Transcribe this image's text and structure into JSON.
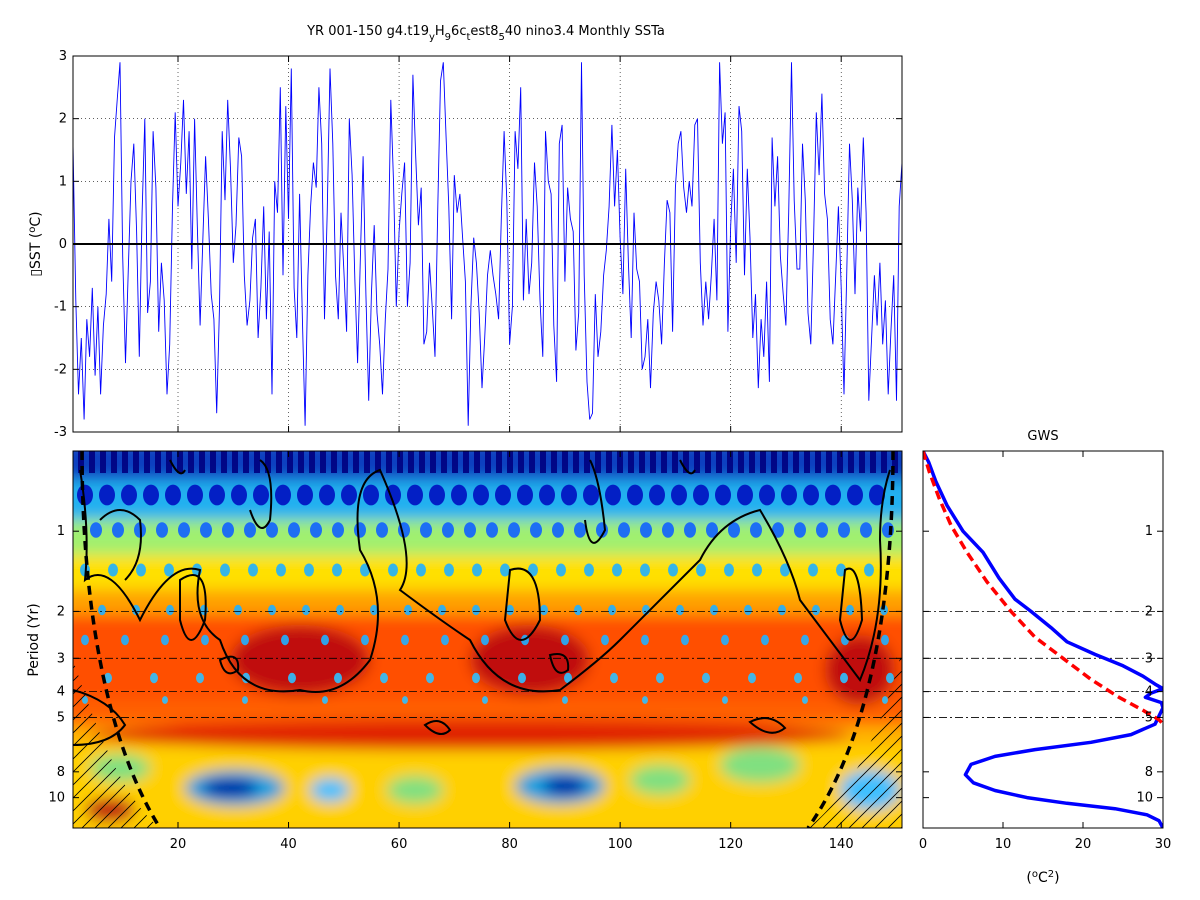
{
  "chart_data": [
    {
      "type": "line",
      "title_parts": [
        "YR 001-150 g4.t19",
        "y",
        "H",
        "9",
        "6c",
        "t",
        "est8",
        "5",
        "40 nino3.4 Monthly SSTa"
      ],
      "ylabel_parts": [
        "▯SST (",
        "o",
        "C)"
      ],
      "xlim": [
        1,
        151
      ],
      "ylim": [
        -3,
        3
      ],
      "x_ticks": [
        20,
        40,
        60,
        80,
        100,
        120,
        140
      ],
      "y_ticks": [
        3,
        2,
        1,
        0,
        -1,
        -2,
        -3
      ],
      "grid": "dotted",
      "zero_line": 0,
      "series": [
        {
          "color": "#0000ff",
          "x_start": 1,
          "x_step": 0.5,
          "values": [
            1.6,
            -0.9,
            -2.4,
            -1.5,
            -2.8,
            -1.2,
            -1.8,
            -0.7,
            -2.1,
            -1.0,
            -2.4,
            -1.3,
            -0.8,
            0.4,
            -0.6,
            1.7,
            2.3,
            2.9,
            -0.2,
            -1.9,
            -0.4,
            1.0,
            1.6,
            0.2,
            -1.8,
            0.5,
            2.0,
            -1.1,
            -0.6,
            1.8,
            0.9,
            -1.4,
            -0.3,
            -0.9,
            -2.4,
            -1.6,
            0.6,
            2.1,
            0.6,
            1.3,
            2.3,
            0.8,
            1.8,
            -0.4,
            2.0,
            0.3,
            -1.3,
            0.1,
            1.4,
            0.4,
            -0.8,
            -1.2,
            -2.7,
            -1.0,
            1.8,
            0.7,
            2.3,
            1.2,
            -0.3,
            0.3,
            1.7,
            1.4,
            -0.5,
            -1.3,
            -0.9,
            0.1,
            0.4,
            -1.5,
            -0.7,
            0.6,
            -1.2,
            0.2,
            -2.4,
            1.0,
            0.5,
            2.5,
            -0.5,
            2.2,
            0.4,
            2.8,
            -0.7,
            -1.5,
            0.8,
            -1.2,
            -2.9,
            -0.5,
            0.6,
            1.3,
            0.9,
            2.5,
            1.6,
            -1.2,
            0.5,
            2.8,
            1.6,
            -0.5,
            -1.2,
            0.5,
            -0.4,
            -1.4,
            2.0,
            1.1,
            -0.6,
            -1.9,
            -0.2,
            1.4,
            -0.8,
            -2.5,
            -0.8,
            0.3,
            -1.1,
            -1.6,
            -2.4,
            -1.2,
            -0.4,
            2.3,
            1.0,
            -1.0,
            0.2,
            0.8,
            1.3,
            -1.0,
            -0.3,
            2.7,
            1.4,
            0.3,
            0.9,
            -1.6,
            -1.4,
            -0.3,
            -1.0,
            -1.8,
            0.6,
            2.6,
            2.9,
            1.7,
            0.6,
            -1.2,
            1.1,
            0.5,
            0.8,
            0.1,
            -0.6,
            -2.9,
            -1.0,
            0.1,
            -0.3,
            -1.1,
            -2.3,
            -1.5,
            -0.5,
            -0.1,
            -0.5,
            -0.8,
            -1.2,
            0.4,
            1.8,
            0.7,
            -1.6,
            -1.0,
            1.8,
            1.2,
            2.5,
            -0.9,
            0.4,
            -0.8,
            -0.3,
            1.3,
            0.6,
            -0.9,
            -1.8,
            1.8,
            1.0,
            0.8,
            -1.3,
            -2.2,
            1.6,
            1.9,
            -0.6,
            0.9,
            0.4,
            0.2,
            -1.7,
            -1.1,
            2.9,
            -0.5,
            -2.2,
            -2.8,
            -2.7,
            -0.8,
            -1.8,
            -1.4,
            -0.5,
            -0.1,
            0.6,
            1.9,
            0.6,
            1.5,
            0.1,
            -0.8,
            1.2,
            -0.3,
            -1.5,
            0.5,
            -0.4,
            -0.6,
            -2.0,
            -1.8,
            -1.2,
            -2.3,
            -1.1,
            -0.6,
            -0.9,
            -1.6,
            -0.3,
            0.7,
            0.5,
            -1.4,
            0.9,
            1.6,
            1.8,
            0.9,
            0.5,
            1.0,
            0.6,
            1.9,
            2.0,
            -0.3,
            -1.3,
            -0.6,
            -1.2,
            -0.5,
            0.4,
            -0.9,
            2.9,
            1.6,
            2.1,
            -1.4,
            0.3,
            1.2,
            -0.3,
            2.2,
            1.8,
            -0.5,
            1.2,
            0.1,
            -1.5,
            -0.8,
            -2.3,
            -1.2,
            -1.8,
            -0.6,
            -2.2,
            1.7,
            0.6,
            1.4,
            -0.2,
            -0.8,
            -1.3,
            0.5,
            2.9,
            0.7,
            -0.4,
            -0.4,
            1.6,
            0.7,
            -1.1,
            -1.6,
            0.1,
            2.1,
            1.1,
            2.4,
            0.8,
            0.4,
            -1.2,
            -1.6,
            -0.5,
            0.6,
            -0.7,
            -2.4,
            -0.5,
            1.6,
            0.7,
            -0.8,
            0.9,
            0.2,
            1.7,
            0.5,
            -2.5,
            -1.5,
            -0.5,
            -1.3,
            -0.3,
            -1.6,
            -0.9,
            -2.4,
            -1.4,
            -0.5,
            -2.5,
            0.6,
            1.3,
            2.5,
            2.0,
            -0.5,
            1.5
          ]
        }
      ]
    },
    {
      "type": "heatmap",
      "ylabel": "Period (Yr)",
      "xlim": [
        1,
        151
      ],
      "y_scale": "log",
      "ylim": [
        0.5,
        13
      ],
      "x_ticks": [
        20,
        40,
        60,
        80,
        100,
        120,
        140
      ],
      "y_ticks": [
        1,
        2,
        3,
        4,
        5,
        8,
        10
      ],
      "reference_periods": [
        2,
        3,
        4,
        5
      ],
      "colormap": "jet",
      "colors": {
        "contour": "#000000",
        "coi": "#000000"
      }
    },
    {
      "type": "line",
      "title": "GWS",
      "xlabel_parts": [
        "(",
        "o",
        "C",
        "2",
        ")"
      ],
      "xlim": [
        0,
        30
      ],
      "x_ticks": [
        0,
        10,
        20,
        30
      ],
      "y_scale": "log",
      "ylim": [
        0.5,
        13
      ],
      "y_ticks": [
        1,
        2,
        3,
        4,
        5,
        8,
        10
      ],
      "reference_periods": [
        2,
        3,
        4,
        5
      ],
      "series": [
        {
          "style": "solid",
          "color": "#0000ff",
          "x": [
            0,
            0.7,
            1.6,
            3.0,
            5.0,
            7.5,
            9.5,
            11.5,
            13.5,
            16.0,
            18.0,
            21.5,
            25.0,
            27.5,
            29.0,
            30.0,
            28.5,
            27.8,
            29.8,
            30.0,
            29.0,
            26.0,
            21.0,
            14.0,
            9.0,
            6.0,
            5.3,
            6.3,
            9.0,
            13.0,
            18.0,
            24.0,
            28.0,
            29.5,
            30.0
          ],
          "y": [
            0.5,
            0.55,
            0.65,
            0.8,
            1.0,
            1.2,
            1.5,
            1.8,
            2.0,
            2.3,
            2.6,
            2.9,
            3.2,
            3.5,
            3.75,
            3.9,
            4.05,
            4.2,
            4.4,
            4.6,
            5.3,
            5.8,
            6.2,
            6.6,
            7.0,
            7.5,
            8.2,
            8.8,
            9.4,
            10.0,
            10.5,
            11.0,
            11.6,
            12.2,
            13.0
          ]
        },
        {
          "style": "dashed",
          "color": "#ff0000",
          "x": [
            0,
            0.8,
            2.0,
            3.5,
            5.5,
            8.0,
            11.0,
            14.0,
            17.5,
            21.0,
            24.5,
            27.5,
            29.5,
            30.0
          ],
          "y": [
            0.5,
            0.6,
            0.75,
            0.95,
            1.2,
            1.55,
            2.0,
            2.5,
            3.0,
            3.6,
            4.2,
            4.7,
            5.1,
            5.3
          ]
        }
      ]
    }
  ]
}
